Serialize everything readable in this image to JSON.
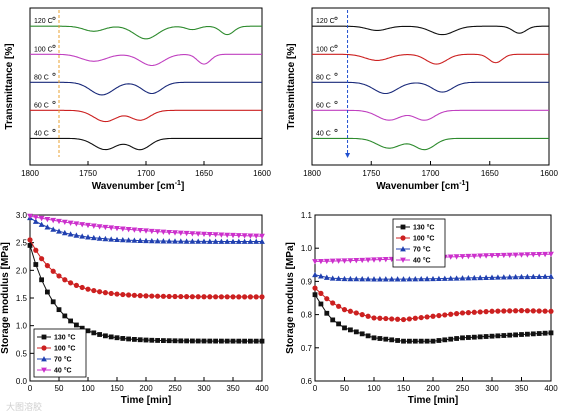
{
  "watermark": "大图溶胶",
  "chart_data": [
    {
      "type": "line",
      "panel": "top-left",
      "xlabel": "Wavenumber",
      "xlabel_unit": "[cm",
      "xlabel_sup": "-1",
      "xlabel_end": "]",
      "ylabel": "Transmittance [%]",
      "xlim": [
        1800,
        1600
      ],
      "xticks": [
        1800,
        1750,
        1700,
        1650,
        1600
      ],
      "marker_line": {
        "x": 1775,
        "color": "#e8a030",
        "style": "dashed"
      },
      "series": [
        {
          "name": "120  C",
          "color": "#2e8b2e",
          "baseline": 1,
          "dips": [
            [
              1745,
              0.18,
              12
            ],
            [
              1700,
              0.45,
              14
            ],
            [
              1630,
              0.3,
              8
            ],
            [
              1660,
              0.12,
              8
            ]
          ]
        },
        {
          "name": "100  C",
          "color": "#c040c0",
          "baseline": 2,
          "dips": [
            [
              1745,
              0.25,
              15
            ],
            [
              1695,
              0.4,
              14
            ],
            [
              1650,
              0.35,
              8
            ]
          ]
        },
        {
          "name": "80  C",
          "color": "#1a2a7a",
          "baseline": 3,
          "dips": [
            [
              1738,
              0.45,
              14
            ],
            [
              1695,
              0.4,
              12
            ]
          ]
        },
        {
          "name": "60  C",
          "color": "#cc2020",
          "baseline": 4,
          "dips": [
            [
              1735,
              0.4,
              14
            ],
            [
              1705,
              0.35,
              12
            ]
          ]
        },
        {
          "name": "40  C",
          "color": "#111111",
          "baseline": 5,
          "dips": [
            [
              1735,
              0.4,
              14
            ],
            [
              1705,
              0.4,
              12
            ]
          ]
        }
      ]
    },
    {
      "type": "line",
      "panel": "top-right",
      "xlabel": "Wavenumber",
      "xlabel_unit": "[cm",
      "xlabel_sup": "-1",
      "xlabel_end": "]",
      "ylabel": "Transmittance [%]",
      "xlim": [
        1800,
        1600
      ],
      "xticks": [
        1800,
        1750,
        1700,
        1650,
        1600
      ],
      "marker_line": {
        "x": 1770,
        "color": "#2050d0",
        "style": "dashed",
        "arrow": true
      },
      "series": [
        {
          "name": "120  C",
          "color": "#111111",
          "baseline": 1,
          "dips": [
            [
              1745,
              0.15,
              12
            ],
            [
              1690,
              0.3,
              14
            ],
            [
              1625,
              0.25,
              8
            ]
          ]
        },
        {
          "name": "100  C",
          "color": "#cc2020",
          "baseline": 2,
          "dips": [
            [
              1745,
              0.22,
              14
            ],
            [
              1695,
              0.35,
              12
            ],
            [
              1645,
              0.3,
              8
            ]
          ]
        },
        {
          "name": "80  C",
          "color": "#1a2a7a",
          "baseline": 3,
          "dips": [
            [
              1738,
              0.4,
              14
            ],
            [
              1690,
              0.35,
              12
            ]
          ]
        },
        {
          "name": "60  C",
          "color": "#c040c0",
          "baseline": 4,
          "dips": [
            [
              1735,
              0.35,
              14
            ],
            [
              1705,
              0.35,
              12
            ]
          ]
        },
        {
          "name": "40  C",
          "color": "#2e8b2e",
          "baseline": 5,
          "dips": [
            [
              1735,
              0.35,
              14
            ],
            [
              1705,
              0.4,
              12
            ]
          ]
        }
      ]
    },
    {
      "type": "line",
      "panel": "bottom-left",
      "xlabel": "Time [min]",
      "ylabel": "Storage modulus [MPa]",
      "xlim": [
        0,
        400
      ],
      "ylim": [
        0.0,
        3.0
      ],
      "xticks": [
        0,
        50,
        100,
        150,
        200,
        250,
        300,
        350,
        400
      ],
      "yticks": [
        0.0,
        0.5,
        1.0,
        1.5,
        2.0,
        2.5,
        3.0
      ],
      "legend": "bottom-left",
      "series": [
        {
          "name": "130 °C",
          "color": "#111111",
          "marker": "square",
          "start": 2.45,
          "end": 0.72,
          "tau": 45
        },
        {
          "name": "100 °C",
          "color": "#cc2020",
          "marker": "circle",
          "start": 2.55,
          "end": 1.52,
          "tau": 50
        },
        {
          "name": "70 °C",
          "color": "#2040b0",
          "marker": "triangle",
          "start": 2.95,
          "end": 2.52,
          "tau": 60
        },
        {
          "name": "40 °C",
          "color": "#cc30cc",
          "marker": "triangle-down",
          "start": 2.98,
          "end": 2.56,
          "tau": 200
        }
      ]
    },
    {
      "type": "line",
      "panel": "bottom-right",
      "xlabel": "Time [min]",
      "ylabel": "Storage modulus [MPa]",
      "xlim": [
        0,
        400
      ],
      "ylim": [
        0.6,
        1.1
      ],
      "xticks": [
        0,
        50,
        100,
        150,
        200,
        250,
        300,
        350,
        400
      ],
      "yticks": [
        0.6,
        0.7,
        0.8,
        0.9,
        1.0,
        1.1
      ],
      "legend": "top-center",
      "series": [
        {
          "name": "130 °C",
          "color": "#111111",
          "marker": "square",
          "points": [
            [
              0,
              0.86
            ],
            [
              25,
              0.79
            ],
            [
              50,
              0.76
            ],
            [
              100,
              0.73
            ],
            [
              150,
              0.72
            ],
            [
              200,
              0.72
            ],
            [
              250,
              0.73
            ],
            [
              300,
              0.735
            ],
            [
              350,
              0.74
            ],
            [
              400,
              0.745
            ]
          ]
        },
        {
          "name": "100 °C",
          "color": "#cc2020",
          "marker": "circle",
          "points": [
            [
              0,
              0.88
            ],
            [
              25,
              0.84
            ],
            [
              50,
              0.815
            ],
            [
              100,
              0.79
            ],
            [
              150,
              0.785
            ],
            [
              200,
              0.795
            ],
            [
              250,
              0.805
            ],
            [
              300,
              0.81
            ],
            [
              350,
              0.812
            ],
            [
              400,
              0.81
            ]
          ]
        },
        {
          "name": "70 °C",
          "color": "#2040b0",
          "marker": "triangle",
          "points": [
            [
              0,
              0.92
            ],
            [
              25,
              0.91
            ],
            [
              50,
              0.908
            ],
            [
              100,
              0.907
            ],
            [
              150,
              0.907
            ],
            [
              200,
              0.908
            ],
            [
              250,
              0.91
            ],
            [
              300,
              0.912
            ],
            [
              350,
              0.914
            ],
            [
              400,
              0.915
            ]
          ]
        },
        {
          "name": "40 °C",
          "color": "#cc30cc",
          "marker": "triangle-down",
          "points": [
            [
              0,
              0.96
            ],
            [
              50,
              0.962
            ],
            [
              100,
              0.965
            ],
            [
              150,
              0.968
            ],
            [
              200,
              0.972
            ],
            [
              250,
              0.975
            ],
            [
              300,
              0.978
            ],
            [
              350,
              0.98
            ],
            [
              400,
              0.982
            ]
          ]
        }
      ]
    }
  ]
}
